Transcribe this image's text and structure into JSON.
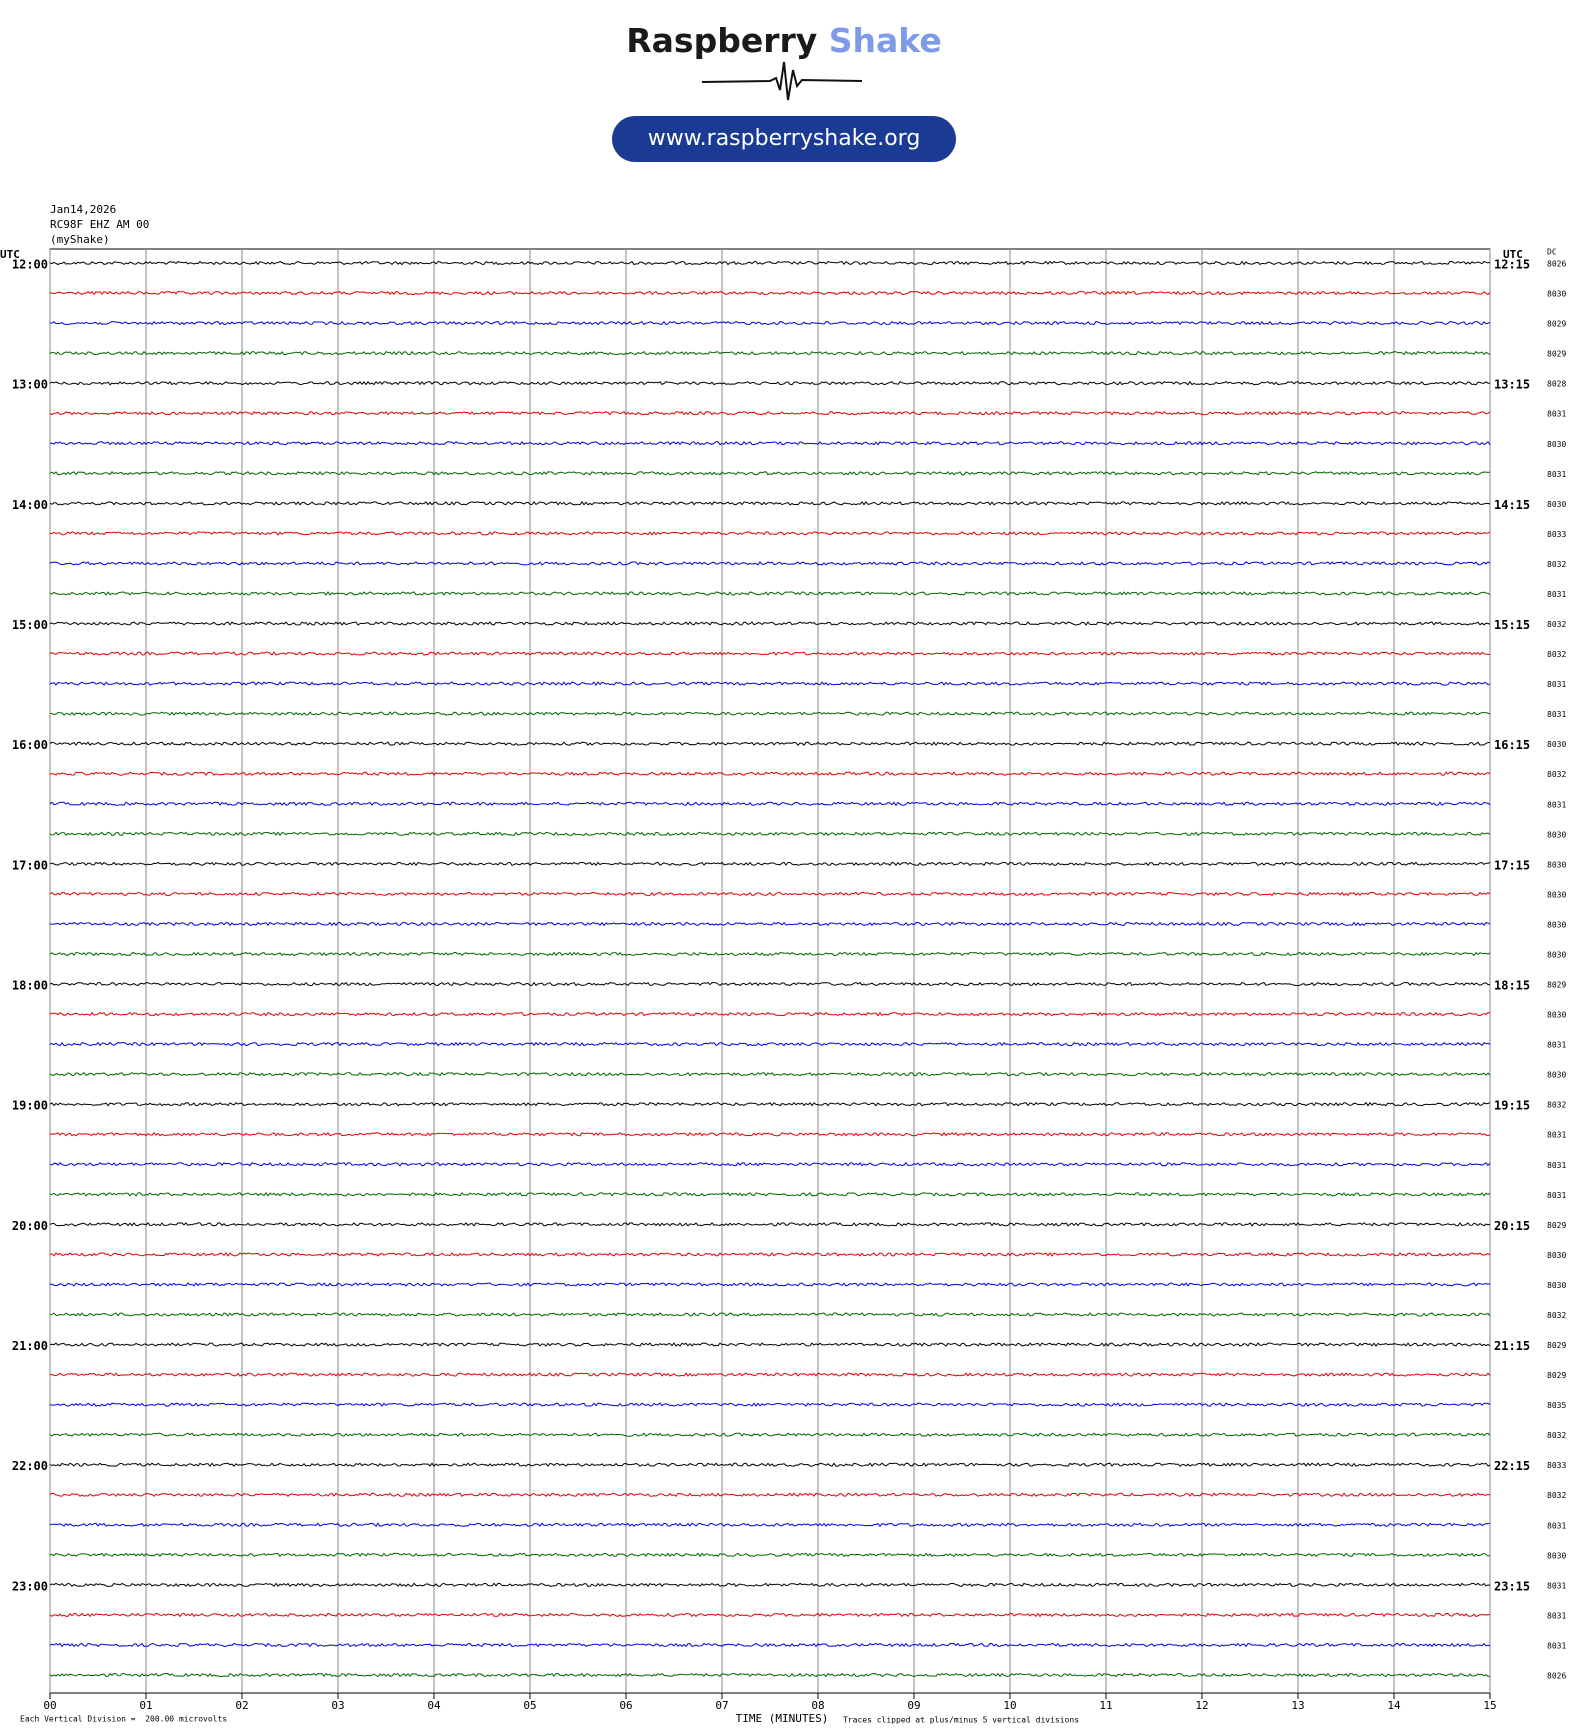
{
  "chart_data": {
    "type": "seismogram",
    "brand_name": "Raspberry",
    "brand_accent": "Shake",
    "url": "www.raspberryshake.org",
    "date": "Jan14,2026",
    "station": "RC98F EHZ AM 00",
    "source": "(myShake)",
    "left_axis_label": "UTC",
    "right_axis_label": "UTC",
    "dc_label": "DC",
    "hour_labels": [
      "12:00",
      "13:00",
      "14:00",
      "15:00",
      "16:00",
      "17:00",
      "18:00",
      "19:00",
      "20:00",
      "21:00",
      "22:00",
      "23:00"
    ],
    "quarter_labels": [
      "12:15",
      "13:15",
      "14:15",
      "15:15",
      "16:15",
      "17:15",
      "18:15",
      "19:15",
      "20:15",
      "21:15",
      "22:15",
      "23:15"
    ],
    "dc_values": [
      8026,
      8030,
      8029,
      8029,
      8028,
      8031,
      8030,
      8031,
      8030,
      8033,
      8032,
      8031,
      8032,
      8032,
      8031,
      8031,
      8030,
      8032,
      8031,
      8030,
      8030,
      8030,
      8030,
      8030,
      8029,
      8030,
      8031,
      8030,
      8032,
      8031,
      8031,
      8031,
      8029,
      8030,
      8030,
      8032,
      8029,
      8029,
      8035,
      8032,
      8033,
      8032,
      8031,
      8030,
      8031,
      8031,
      8031,
      8026
    ],
    "trace_colors": [
      "#000000",
      "#e00000",
      "#0000e0",
      "#006400"
    ],
    "xlim": [
      0,
      15
    ],
    "xticks": [
      {
        "value": 0,
        "label": "00"
      },
      {
        "value": 1,
        "label": "01"
      },
      {
        "value": 2,
        "label": "02"
      },
      {
        "value": 3,
        "label": "03"
      },
      {
        "value": 4,
        "label": "04"
      },
      {
        "value": 5,
        "label": "05"
      },
      {
        "value": 6,
        "label": "06"
      },
      {
        "value": 7,
        "label": "07"
      },
      {
        "value": 8,
        "label": "08"
      },
      {
        "value": 9,
        "label": "09"
      },
      {
        "value": 10,
        "label": "10"
      },
      {
        "value": 11,
        "label": "11"
      },
      {
        "value": 12,
        "label": "12"
      },
      {
        "value": 13,
        "label": "13"
      },
      {
        "value": 14,
        "label": "14"
      },
      {
        "value": 15,
        "label": "15"
      }
    ],
    "xlabel": "TIME (MINUTES)",
    "scale_note": "Each Vertical Division =  200.00 microvolts",
    "clip_note": "Traces clipped at plus/minus 5 vertical divisions",
    "grid": true
  }
}
